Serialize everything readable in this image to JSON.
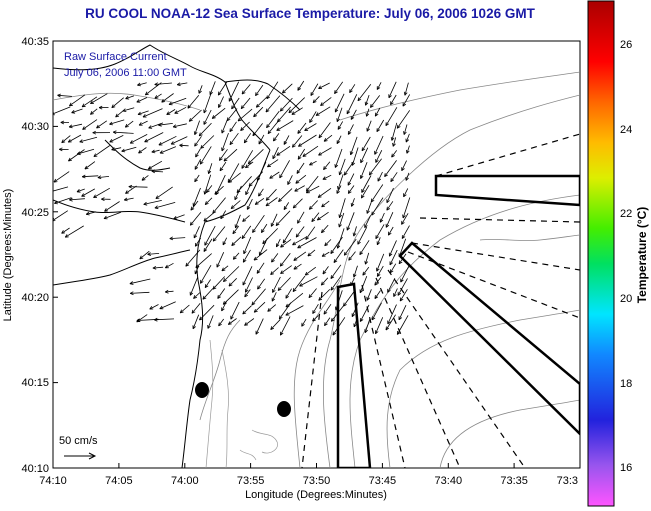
{
  "title": "RU COOL  NOAA-12  Sea Surface Temperature:  July 06, 2006 1026 GMT",
  "legend": {
    "line1": "Raw Surface Current",
    "line2": "July 06, 2006 11:00 GMT"
  },
  "scale_label": "50 cm/s",
  "axes": {
    "xlabel": "Longitude (Degrees:Minutes)",
    "ylabel": "Latitude (Degrees:Minutes)",
    "xticks": [
      "74:10",
      "74:05",
      "74:00",
      "73:55",
      "73:50",
      "73:45",
      "73:40",
      "73:35",
      "73:3"
    ],
    "yticks": [
      "40:35",
      "40:30",
      "40:25",
      "40:20",
      "40:15",
      "40:10"
    ]
  },
  "colorbar": {
    "title": "Temperature (°C)",
    "ticks": [
      "26",
      "24",
      "22",
      "20",
      "18",
      "16"
    ],
    "range": [
      15,
      27
    ]
  },
  "colors": {
    "title": "#1a1aa6",
    "coastline": "#000000",
    "contour": "#888888",
    "arrows": "#000000"
  }
}
